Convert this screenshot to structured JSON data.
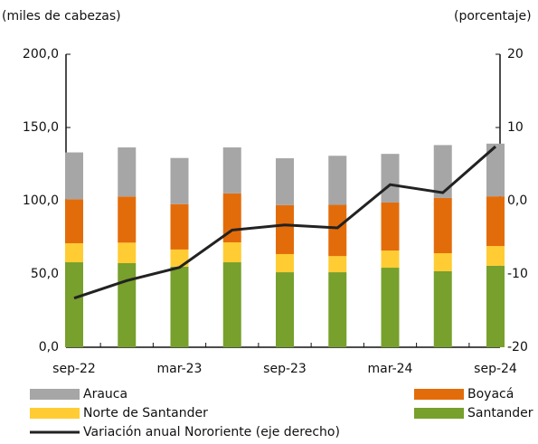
{
  "chart_data": {
    "type": "bar",
    "stacked": true,
    "y_label": "(miles de cabezas)",
    "y2_label": "(porcentaje)",
    "categories": [
      "sep-22",
      null,
      "mar-23",
      null,
      "sep-23",
      null,
      "mar-24",
      null,
      "sep-24"
    ],
    "series": [
      {
        "name": "Santander",
        "color": "#77a02c",
        "values": [
          58.0,
          57.4,
          55.0,
          58.0,
          51.2,
          51.2,
          54.3,
          51.9,
          55.6
        ]
      },
      {
        "name": "Norte de Santander",
        "color": "#ffcc33",
        "values": [
          13.0,
          14.0,
          11.7,
          13.6,
          12.4,
          11.0,
          11.7,
          12.3,
          13.5
        ]
      },
      {
        "name": "Boyacá",
        "color": "#e36c0a",
        "values": [
          30.0,
          31.5,
          31.0,
          33.4,
          33.4,
          35.0,
          32.8,
          37.7,
          33.9
        ]
      },
      {
        "name": "Arauca",
        "color": "#a6a6a6",
        "values": [
          32.0,
          33.5,
          31.5,
          31.4,
          32.0,
          33.5,
          33.2,
          36.1,
          36.0
        ]
      },
      {
        "name": "Variación anual Nororiente (eje derecho)",
        "color": "#222222",
        "type": "line",
        "axis": "y2",
        "values": [
          -13.3,
          -10.9,
          -9.1,
          -4.0,
          -3.3,
          -3.7,
          2.2,
          1.1,
          7.4
        ]
      }
    ],
    "ylim": [
      0,
      200
    ],
    "yticks": [
      {
        "value": 0,
        "label": "0,0"
      },
      {
        "value": 50,
        "label": "50,0"
      },
      {
        "value": 100,
        "label": "100,0"
      },
      {
        "value": 150,
        "label": "150,0"
      },
      {
        "value": 200,
        "label": "200,0"
      }
    ],
    "y2lim": [
      -20,
      20
    ],
    "y2ticks": [
      -20,
      -10,
      {
        "value": 0,
        "label": "0,0"
      },
      10,
      20
    ],
    "grid": false
  }
}
